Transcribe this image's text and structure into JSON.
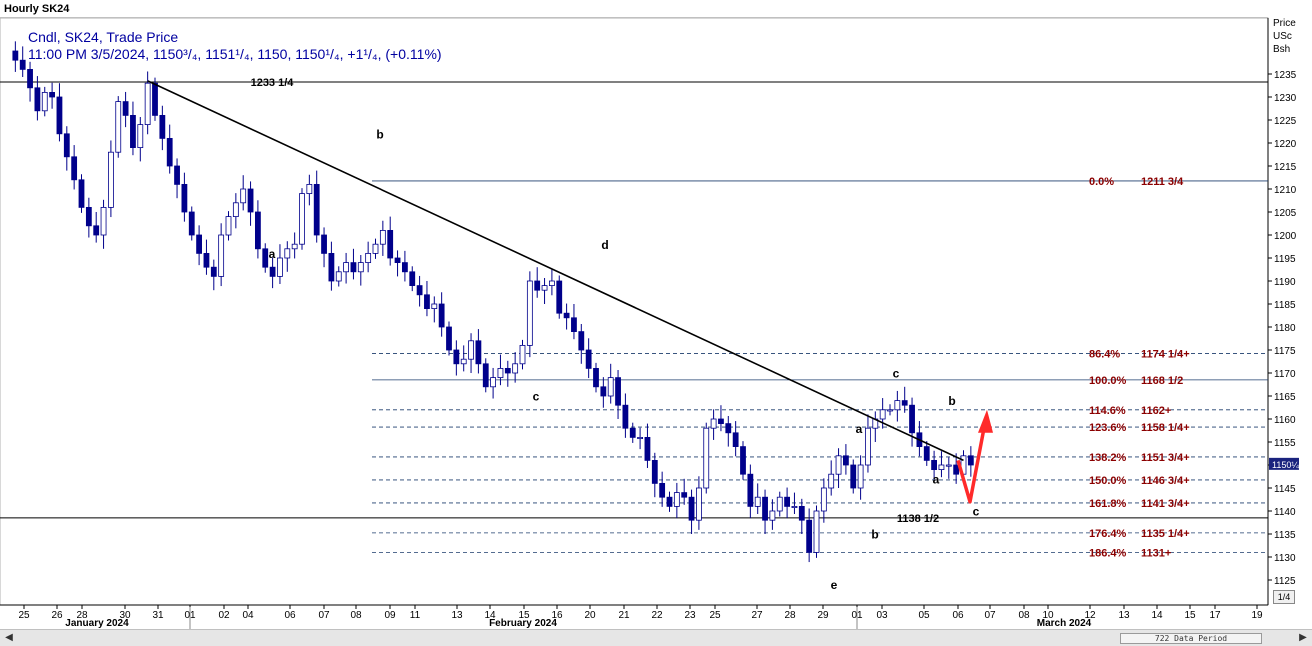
{
  "window": {
    "title": "Hourly SK24"
  },
  "legend": {
    "line1": "Cndl, SK24, Trade Price",
    "line2": "11:00 PM 3/5/2024, 1150³/₄, 1151¹/₄, 1150, 1150¹/₄, +1¹/₄, (+0.11%)"
  },
  "axis_header": {
    "l1": "Price",
    "l2": "USc",
    "l3": "Bsh"
  },
  "last_price_tag": "1150¼",
  "scrollbar": {
    "left_arrow": "◀",
    "right_arrow": "▶",
    "thumb_label": "722 Data Period"
  },
  "zoom_label": "1/4",
  "colors": {
    "candles": "#00008b",
    "fib_label": "#8b0000",
    "trendline": "#000000",
    "arrow": "#ff2a2a"
  },
  "chart_data": {
    "type": "candlestick",
    "title": "Hourly SK24",
    "ylim": [
      1121,
      1240
    ],
    "y_ticks": [
      1125,
      1130,
      1135,
      1140,
      1145,
      1150,
      1155,
      1160,
      1165,
      1170,
      1175,
      1180,
      1185,
      1190,
      1195,
      1200,
      1205,
      1210,
      1215,
      1220,
      1225,
      1230,
      1235
    ],
    "x_day_labels": [
      "25",
      "26",
      "28",
      "30",
      "31",
      "01",
      "02",
      "04",
      "06",
      "07",
      "08",
      "09",
      "11",
      "13",
      "14",
      "15",
      "16",
      "20",
      "21",
      "22",
      "23",
      "25",
      "27",
      "28",
      "29",
      "01",
      "03",
      "05",
      "06",
      "07",
      "08",
      "10",
      "12",
      "13",
      "14",
      "15",
      "17",
      "19"
    ],
    "month_labels": [
      "January 2024",
      "February 2024",
      "March 2024"
    ],
    "price_path": [
      [
        0,
        1240
      ],
      [
        1,
        1238
      ],
      [
        2,
        1236
      ],
      [
        3,
        1232
      ],
      [
        4,
        1227
      ],
      [
        5,
        1231
      ],
      [
        6,
        1230
      ],
      [
        7,
        1222
      ],
      [
        8,
        1217
      ],
      [
        9,
        1212
      ],
      [
        10,
        1206
      ],
      [
        11,
        1202
      ],
      [
        12,
        1200
      ],
      [
        13,
        1206
      ],
      [
        14,
        1218
      ],
      [
        15,
        1229
      ],
      [
        16,
        1226
      ],
      [
        17,
        1219
      ],
      [
        18,
        1224
      ],
      [
        19,
        1233
      ],
      [
        20,
        1226
      ],
      [
        21,
        1221
      ],
      [
        22,
        1215
      ],
      [
        23,
        1211
      ],
      [
        24,
        1205
      ],
      [
        25,
        1200
      ],
      [
        26,
        1196
      ],
      [
        27,
        1193
      ],
      [
        28,
        1191
      ],
      [
        29,
        1200
      ],
      [
        30,
        1204
      ],
      [
        31,
        1207
      ],
      [
        32,
        1210
      ],
      [
        33,
        1205
      ],
      [
        34,
        1197
      ],
      [
        35,
        1193
      ],
      [
        36,
        1191
      ],
      [
        37,
        1195
      ],
      [
        38,
        1197
      ],
      [
        39,
        1198
      ],
      [
        40,
        1209
      ],
      [
        41,
        1211
      ],
      [
        42,
        1200
      ],
      [
        43,
        1196
      ],
      [
        44,
        1190
      ],
      [
        45,
        1192
      ],
      [
        46,
        1194
      ],
      [
        47,
        1192
      ],
      [
        48,
        1194
      ],
      [
        49,
        1196
      ],
      [
        50,
        1198
      ],
      [
        51,
        1201
      ],
      [
        52,
        1195
      ],
      [
        53,
        1194
      ],
      [
        54,
        1192
      ],
      [
        55,
        1189
      ],
      [
        56,
        1187
      ],
      [
        57,
        1184
      ],
      [
        58,
        1185
      ],
      [
        59,
        1180
      ],
      [
        60,
        1175
      ],
      [
        61,
        1172
      ],
      [
        62,
        1173
      ],
      [
        63,
        1177
      ],
      [
        64,
        1172
      ],
      [
        65,
        1167
      ],
      [
        66,
        1169
      ],
      [
        67,
        1171
      ],
      [
        68,
        1170
      ],
      [
        69,
        1172
      ],
      [
        70,
        1176
      ],
      [
        71,
        1190
      ],
      [
        72,
        1188
      ],
      [
        73,
        1189
      ],
      [
        74,
        1190
      ],
      [
        75,
        1183
      ],
      [
        76,
        1182
      ],
      [
        77,
        1179
      ],
      [
        78,
        1175
      ],
      [
        79,
        1171
      ],
      [
        80,
        1167
      ],
      [
        81,
        1165
      ],
      [
        82,
        1169
      ],
      [
        83,
        1163
      ],
      [
        84,
        1158
      ],
      [
        85,
        1156
      ],
      [
        86,
        1156
      ],
      [
        87,
        1151
      ],
      [
        88,
        1146
      ],
      [
        89,
        1143
      ],
      [
        90,
        1141
      ],
      [
        91,
        1144
      ],
      [
        92,
        1143
      ],
      [
        93,
        1138
      ],
      [
        94,
        1145
      ],
      [
        95,
        1158
      ],
      [
        96,
        1160
      ],
      [
        97,
        1159
      ],
      [
        98,
        1157
      ],
      [
        99,
        1154
      ],
      [
        100,
        1148
      ],
      [
        101,
        1141
      ],
      [
        102,
        1143
      ],
      [
        103,
        1138
      ],
      [
        104,
        1140
      ],
      [
        105,
        1143
      ],
      [
        106,
        1141
      ],
      [
        107,
        1141
      ],
      [
        108,
        1138
      ],
      [
        109,
        1131
      ],
      [
        110,
        1140
      ],
      [
        111,
        1145
      ],
      [
        112,
        1148
      ],
      [
        113,
        1152
      ],
      [
        114,
        1150
      ],
      [
        115,
        1145
      ],
      [
        116,
        1150
      ],
      [
        117,
        1158
      ],
      [
        118,
        1160
      ],
      [
        119,
        1162
      ],
      [
        120,
        1162
      ],
      [
        121,
        1164
      ],
      [
        122,
        1163
      ],
      [
        123,
        1157
      ],
      [
        124,
        1154
      ],
      [
        125,
        1151
      ],
      [
        126,
        1149
      ],
      [
        127,
        1150
      ],
      [
        128,
        1150
      ],
      [
        129,
        1148
      ],
      [
        130,
        1152
      ],
      [
        131,
        1150
      ]
    ],
    "horizontal_lines": [
      {
        "label": "1233 1/4",
        "value": 1233.25
      },
      {
        "label": "1138 1/2",
        "value": 1138.5
      }
    ],
    "fib_levels": [
      {
        "pct": "0.0%",
        "price": "1211 3/4",
        "value": 1211.75
      },
      {
        "pct": "86.4%",
        "price": "1174 1/4+",
        "value": 1174.25
      },
      {
        "pct": "100.0%",
        "price": "1168 1/2",
        "value": 1168.5
      },
      {
        "pct": "114.6%",
        "price": "1162+",
        "value": 1162
      },
      {
        "pct": "123.6%",
        "price": "1158 1/4+",
        "value": 1158.25
      },
      {
        "pct": "138.2%",
        "price": "1151 3/4+",
        "value": 1151.75
      },
      {
        "pct": "150.0%",
        "price": "1146 3/4+",
        "value": 1146.75
      },
      {
        "pct": "161.8%",
        "price": "1141 3/4+",
        "value": 1141.75
      },
      {
        "pct": "176.4%",
        "price": "1135 1/4+",
        "value": 1135.25
      },
      {
        "pct": "186.4%",
        "price": "1131+",
        "value": 1131
      }
    ],
    "wave_labels": [
      "a",
      "b",
      "c",
      "d",
      "e",
      "a",
      "b",
      "c",
      "a",
      "b",
      "c"
    ]
  }
}
